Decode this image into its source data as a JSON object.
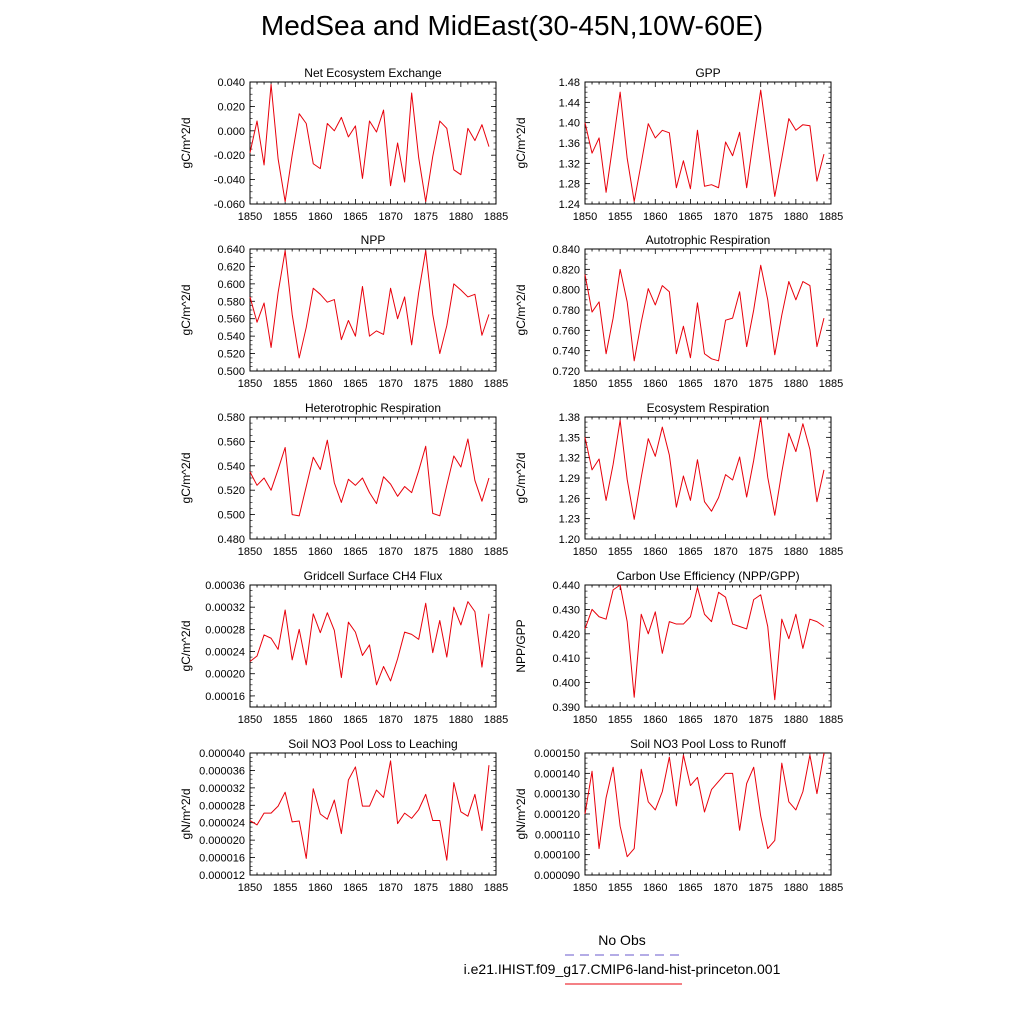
{
  "figure": {
    "title": "MedSea and MidEast(30-45N,10W-60E)",
    "legend": {
      "obs_label": "No Obs",
      "obs_color": "#6a5acd",
      "model_label": "i.e21.IHIST.f09_g17.CMIP6-land-hist-princeton.001",
      "model_color": "#e8000b"
    }
  },
  "chart_data": [
    {
      "type": "line",
      "title": "Net Ecosystem Exchange",
      "ylabel": "gC/m^2/d",
      "xlabel": "",
      "xlim": [
        1850,
        1885
      ],
      "ylim": [
        -0.06,
        0.04
      ],
      "xticks": [
        "1850",
        "1855",
        "1860",
        "1865",
        "1870",
        "1875",
        "1880",
        "1885"
      ],
      "yticks": [
        "-0.060",
        "-0.040",
        "-0.020",
        "0.000",
        "0.020",
        "0.040"
      ],
      "x": [
        1850,
        1851,
        1852,
        1853,
        1854,
        1855,
        1856,
        1857,
        1858,
        1859,
        1860,
        1861,
        1862,
        1863,
        1864,
        1865,
        1866,
        1867,
        1868,
        1869,
        1870,
        1871,
        1872,
        1873,
        1874,
        1875,
        1876,
        1877,
        1878,
        1879,
        1880,
        1881,
        1882,
        1883,
        1884
      ],
      "series": [
        {
          "values": [
            -0.018,
            0.008,
            -0.028,
            0.038,
            -0.023,
            -0.058,
            -0.02,
            0.014,
            0.006,
            -0.027,
            -0.031,
            0.006,
            0.0,
            0.011,
            -0.005,
            0.004,
            -0.039,
            0.008,
            -0.001,
            0.017,
            -0.045,
            -0.01,
            -0.042,
            0.031,
            -0.022,
            -0.058,
            -0.021,
            0.008,
            0.002,
            -0.032,
            -0.036,
            0.002,
            -0.008,
            0.005,
            -0.013
          ],
          "color": "#e8000b"
        }
      ]
    },
    {
      "type": "line",
      "title": "GPP",
      "ylabel": "gC/m^2/d",
      "xlabel": "",
      "xlim": [
        1850,
        1885
      ],
      "ylim": [
        1.24,
        1.48
      ],
      "xticks": [
        "1850",
        "1855",
        "1860",
        "1865",
        "1870",
        "1875",
        "1880",
        "1885"
      ],
      "yticks": [
        "1.24",
        "1.28",
        "1.32",
        "1.36",
        "1.40",
        "1.44",
        "1.48"
      ],
      "x": [
        1850,
        1851,
        1852,
        1853,
        1854,
        1855,
        1856,
        1857,
        1858,
        1859,
        1860,
        1861,
        1862,
        1863,
        1864,
        1865,
        1866,
        1867,
        1868,
        1869,
        1870,
        1871,
        1872,
        1873,
        1874,
        1875,
        1876,
        1877,
        1878,
        1879,
        1880,
        1881,
        1882,
        1883,
        1884
      ],
      "series": [
        {
          "values": [
            1.4,
            1.34,
            1.37,
            1.263,
            1.36,
            1.46,
            1.33,
            1.245,
            1.32,
            1.398,
            1.37,
            1.385,
            1.38,
            1.272,
            1.325,
            1.27,
            1.385,
            1.275,
            1.278,
            1.272,
            1.362,
            1.335,
            1.381,
            1.272,
            1.37,
            1.464,
            1.36,
            1.255,
            1.33,
            1.408,
            1.385,
            1.396,
            1.394,
            1.285,
            1.338
          ],
          "color": "#e8000b"
        }
      ]
    },
    {
      "type": "line",
      "title": "NPP",
      "ylabel": "gC/m^2/d",
      "xlabel": "",
      "xlim": [
        1850,
        1885
      ],
      "ylim": [
        0.5,
        0.64
      ],
      "xticks": [
        "1850",
        "1855",
        "1860",
        "1865",
        "1870",
        "1875",
        "1880",
        "1885"
      ],
      "yticks": [
        "0.500",
        "0.520",
        "0.540",
        "0.560",
        "0.580",
        "0.600",
        "0.620",
        "0.640"
      ],
      "x": [
        1850,
        1851,
        1852,
        1853,
        1854,
        1855,
        1856,
        1857,
        1858,
        1859,
        1860,
        1861,
        1862,
        1863,
        1864,
        1865,
        1866,
        1867,
        1868,
        1869,
        1870,
        1871,
        1872,
        1873,
        1874,
        1875,
        1876,
        1877,
        1878,
        1879,
        1880,
        1881,
        1882,
        1883,
        1884
      ],
      "series": [
        {
          "values": [
            0.585,
            0.556,
            0.578,
            0.527,
            0.59,
            0.638,
            0.565,
            0.515,
            0.55,
            0.595,
            0.588,
            0.579,
            0.582,
            0.536,
            0.558,
            0.54,
            0.597,
            0.54,
            0.546,
            0.542,
            0.595,
            0.56,
            0.585,
            0.53,
            0.59,
            0.638,
            0.565,
            0.52,
            0.552,
            0.6,
            0.593,
            0.585,
            0.588,
            0.541,
            0.565
          ],
          "color": "#e8000b"
        }
      ]
    },
    {
      "type": "line",
      "title": "Autotrophic Respiration",
      "ylabel": "gC/m^2/d",
      "xlabel": "",
      "xlim": [
        1850,
        1885
      ],
      "ylim": [
        0.72,
        0.84
      ],
      "xticks": [
        "1850",
        "1855",
        "1860",
        "1865",
        "1870",
        "1875",
        "1880",
        "1885"
      ],
      "yticks": [
        "0.720",
        "0.740",
        "0.760",
        "0.780",
        "0.800",
        "0.820",
        "0.840"
      ],
      "x": [
        1850,
        1851,
        1852,
        1853,
        1854,
        1855,
        1856,
        1857,
        1858,
        1859,
        1860,
        1861,
        1862,
        1863,
        1864,
        1865,
        1866,
        1867,
        1868,
        1869,
        1870,
        1871,
        1872,
        1873,
        1874,
        1875,
        1876,
        1877,
        1878,
        1879,
        1880,
        1881,
        1882,
        1883,
        1884
      ],
      "series": [
        {
          "values": [
            0.815,
            0.778,
            0.788,
            0.737,
            0.772,
            0.82,
            0.788,
            0.73,
            0.768,
            0.801,
            0.785,
            0.804,
            0.798,
            0.737,
            0.764,
            0.733,
            0.787,
            0.737,
            0.732,
            0.73,
            0.77,
            0.772,
            0.798,
            0.744,
            0.78,
            0.824,
            0.79,
            0.736,
            0.775,
            0.808,
            0.79,
            0.808,
            0.804,
            0.744,
            0.772
          ],
          "color": "#e8000b"
        }
      ]
    },
    {
      "type": "line",
      "title": "Heterotrophic Respiration",
      "ylabel": "gC/m^2/d",
      "xlabel": "",
      "xlim": [
        1850,
        1885
      ],
      "ylim": [
        0.48,
        0.58
      ],
      "xticks": [
        "1850",
        "1855",
        "1860",
        "1865",
        "1870",
        "1875",
        "1880",
        "1885"
      ],
      "yticks": [
        "0.480",
        "0.500",
        "0.520",
        "0.540",
        "0.560",
        "0.580"
      ],
      "x": [
        1850,
        1851,
        1852,
        1853,
        1854,
        1855,
        1856,
        1857,
        1858,
        1859,
        1860,
        1861,
        1862,
        1863,
        1864,
        1865,
        1866,
        1867,
        1868,
        1869,
        1870,
        1871,
        1872,
        1873,
        1874,
        1875,
        1876,
        1877,
        1878,
        1879,
        1880,
        1881,
        1882,
        1883,
        1884
      ],
      "series": [
        {
          "values": [
            0.535,
            0.524,
            0.53,
            0.52,
            0.537,
            0.555,
            0.5,
            0.499,
            0.523,
            0.547,
            0.537,
            0.561,
            0.526,
            0.51,
            0.529,
            0.524,
            0.53,
            0.518,
            0.509,
            0.531,
            0.525,
            0.515,
            0.523,
            0.518,
            0.536,
            0.556,
            0.501,
            0.499,
            0.524,
            0.548,
            0.539,
            0.562,
            0.528,
            0.511,
            0.53
          ],
          "color": "#e8000b"
        }
      ]
    },
    {
      "type": "line",
      "title": "Ecosystem Respiration",
      "ylabel": "gC/m^2/d",
      "xlabel": "",
      "xlim": [
        1850,
        1885
      ],
      "ylim": [
        1.2,
        1.38
      ],
      "xticks": [
        "1850",
        "1855",
        "1860",
        "1865",
        "1870",
        "1875",
        "1880",
        "1885"
      ],
      "yticks": [
        "1.20",
        "1.23",
        "1.26",
        "1.29",
        "1.32",
        "1.35",
        "1.38"
      ],
      "x": [
        1850,
        1851,
        1852,
        1853,
        1854,
        1855,
        1856,
        1857,
        1858,
        1859,
        1860,
        1861,
        1862,
        1863,
        1864,
        1865,
        1866,
        1867,
        1868,
        1869,
        1870,
        1871,
        1872,
        1873,
        1874,
        1875,
        1876,
        1877,
        1878,
        1879,
        1880,
        1881,
        1882,
        1883,
        1884
      ],
      "series": [
        {
          "values": [
            1.35,
            1.302,
            1.318,
            1.257,
            1.31,
            1.375,
            1.288,
            1.229,
            1.291,
            1.348,
            1.322,
            1.365,
            1.324,
            1.247,
            1.293,
            1.257,
            1.317,
            1.255,
            1.241,
            1.261,
            1.295,
            1.287,
            1.321,
            1.262,
            1.316,
            1.38,
            1.291,
            1.235,
            1.299,
            1.356,
            1.329,
            1.37,
            1.332,
            1.255,
            1.302
          ],
          "color": "#e8000b"
        }
      ]
    },
    {
      "type": "line",
      "title": "Gridcell Surface CH4 Flux",
      "ylabel": "gC/m^2/d",
      "xlabel": "",
      "xlim": [
        1850,
        1885
      ],
      "ylim": [
        0.00014,
        0.00036
      ],
      "xticks": [
        "1850",
        "1855",
        "1860",
        "1865",
        "1870",
        "1875",
        "1880",
        "1885"
      ],
      "yticks": [
        "0.00016",
        "0.00020",
        "0.00024",
        "0.00028",
        "0.00032",
        "0.00036"
      ],
      "x": [
        1850,
        1851,
        1852,
        1853,
        1854,
        1855,
        1856,
        1857,
        1858,
        1859,
        1860,
        1861,
        1862,
        1863,
        1864,
        1865,
        1866,
        1867,
        1868,
        1869,
        1870,
        1871,
        1872,
        1873,
        1874,
        1875,
        1876,
        1877,
        1878,
        1879,
        1880,
        1881,
        1882,
        1883,
        1884
      ],
      "series": [
        {
          "values": [
            0.000222,
            0.000232,
            0.00027,
            0.000264,
            0.000244,
            0.000315,
            0.000225,
            0.00028,
            0.000216,
            0.000308,
            0.000274,
            0.00031,
            0.000278,
            0.000193,
            0.000293,
            0.000275,
            0.000233,
            0.000252,
            0.00018,
            0.000213,
            0.000187,
            0.000227,
            0.000275,
            0.000271,
            0.000262,
            0.000327,
            0.000238,
            0.000296,
            0.00023,
            0.00032,
            0.000288,
            0.00033,
            0.000312,
            0.000212,
            0.000308
          ],
          "color": "#e8000b"
        }
      ]
    },
    {
      "type": "line",
      "title": "Carbon Use Efficiency (NPP/GPP)",
      "ylabel": "NPP/GPP",
      "xlabel": "",
      "xlim": [
        1850,
        1885
      ],
      "ylim": [
        0.39,
        0.44
      ],
      "xticks": [
        "1850",
        "1855",
        "1860",
        "1865",
        "1870",
        "1875",
        "1880",
        "1885"
      ],
      "yticks": [
        "0.390",
        "0.400",
        "0.410",
        "0.420",
        "0.430",
        "0.440"
      ],
      "x": [
        1850,
        1851,
        1852,
        1853,
        1854,
        1855,
        1856,
        1857,
        1858,
        1859,
        1860,
        1861,
        1862,
        1863,
        1864,
        1865,
        1866,
        1867,
        1868,
        1869,
        1870,
        1871,
        1872,
        1873,
        1874,
        1875,
        1876,
        1877,
        1878,
        1879,
        1880,
        1881,
        1882,
        1883,
        1884
      ],
      "series": [
        {
          "values": [
            0.422,
            0.43,
            0.427,
            0.426,
            0.438,
            0.44,
            0.425,
            0.394,
            0.428,
            0.42,
            0.429,
            0.412,
            0.425,
            0.424,
            0.424,
            0.427,
            0.439,
            0.428,
            0.425,
            0.437,
            0.435,
            0.424,
            0.423,
            0.422,
            0.434,
            0.436,
            0.423,
            0.393,
            0.426,
            0.418,
            0.428,
            0.414,
            0.426,
            0.425,
            0.423
          ],
          "color": "#e8000b"
        }
      ]
    },
    {
      "type": "line",
      "title": "Soil NO3 Pool Loss to Leaching",
      "ylabel": "gN/m^2/d",
      "xlabel": "",
      "xlim": [
        1850,
        1885
      ],
      "ylim": [
        1.2e-05,
        4e-05
      ],
      "xticks": [
        "1850",
        "1855",
        "1860",
        "1865",
        "1870",
        "1875",
        "1880",
        "1885"
      ],
      "yticks": [
        "0.000012",
        "0.000016",
        "0.000020",
        "0.000024",
        "0.000028",
        "0.000032",
        "0.000036",
        "0.000040"
      ],
      "x": [
        1850,
        1851,
        1852,
        1853,
        1854,
        1855,
        1856,
        1857,
        1858,
        1859,
        1860,
        1861,
        1862,
        1863,
        1864,
        1865,
        1866,
        1867,
        1868,
        1869,
        1870,
        1871,
        1872,
        1873,
        1874,
        1875,
        1876,
        1877,
        1878,
        1879,
        1880,
        1881,
        1882,
        1883,
        1884
      ],
      "series": [
        {
          "values": [
            2.45e-05,
            2.35e-05,
            2.62e-05,
            2.62e-05,
            2.78e-05,
            3.1e-05,
            2.42e-05,
            2.44e-05,
            1.58e-05,
            3.18e-05,
            2.6e-05,
            2.48e-05,
            2.92e-05,
            2.15e-05,
            3.38e-05,
            3.68e-05,
            2.78e-05,
            2.78e-05,
            3.15e-05,
            2.98e-05,
            3.82e-05,
            2.38e-05,
            2.62e-05,
            2.5e-05,
            2.7e-05,
            3.05e-05,
            2.45e-05,
            2.45e-05,
            1.54e-05,
            3.32e-05,
            2.65e-05,
            2.55e-05,
            3.05e-05,
            2.22e-05,
            3.72e-05
          ],
          "color": "#e8000b"
        }
      ]
    },
    {
      "type": "line",
      "title": "Soil NO3 Pool Loss to Runoff",
      "ylabel": "gN/m^2/d",
      "xlabel": "",
      "xlim": [
        1850,
        1885
      ],
      "ylim": [
        9e-05,
        0.00015
      ],
      "xticks": [
        "1850",
        "1855",
        "1860",
        "1865",
        "1870",
        "1875",
        "1880",
        "1885"
      ],
      "yticks": [
        "0.000090",
        "0.000100",
        "0.000110",
        "0.000120",
        "0.000130",
        "0.000140",
        "0.000150"
      ],
      "x": [
        1850,
        1851,
        1852,
        1853,
        1854,
        1855,
        1856,
        1857,
        1858,
        1859,
        1860,
        1861,
        1862,
        1863,
        1864,
        1865,
        1866,
        1867,
        1868,
        1869,
        1870,
        1871,
        1872,
        1873,
        1874,
        1875,
        1876,
        1877,
        1878,
        1879,
        1880,
        1881,
        1882,
        1883,
        1884
      ],
      "series": [
        {
          "values": [
            0.00012,
            0.000141,
            0.000103,
            0.000128,
            0.000143,
            0.000114,
            9.9e-05,
            0.000103,
            0.000142,
            0.000126,
            0.000122,
            0.000131,
            0.000148,
            0.000124,
            0.000149,
            0.000134,
            0.000138,
            0.000121,
            0.000132,
            0.000136,
            0.00014,
            0.00014,
            0.000112,
            0.000135,
            0.000143,
            0.000119,
            0.000103,
            0.000107,
            0.000145,
            0.000126,
            0.000122,
            0.000131,
            0.000149,
            0.00013,
            0.00015
          ],
          "color": "#e8000b"
        }
      ]
    }
  ]
}
